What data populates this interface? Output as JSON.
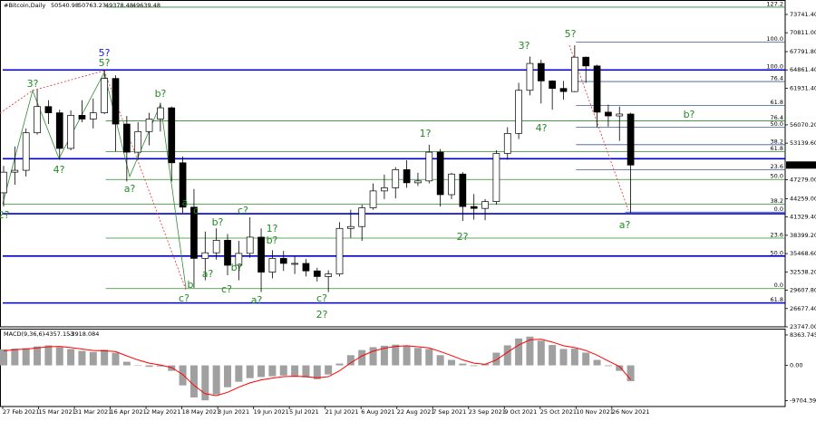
{
  "chart_data": {
    "type": "candlestick",
    "title": "#Bitcoin,Daily",
    "header_values": [
      50540.98,
      50763.23,
      49378.48,
      49639.48
    ],
    "x": [
      "27 Feb 2021",
      "4 Mar 2021",
      "9 Mar 2021",
      "14 Mar 2021",
      "19 Mar 2021",
      "24 Mar 2021",
      "29 Mar 2021",
      "3 Apr 2021",
      "8 Apr 2021",
      "13 Apr 2021",
      "18 Apr 2021",
      "23 Apr 2021",
      "28 Apr 2021",
      "3 May 2021",
      "8 May 2021",
      "13 May 2021",
      "18 May 2021",
      "23 May 2021",
      "28 May 2021",
      "2 Jun 2021",
      "7 Jun 2021",
      "12 Jun 2021",
      "17 Jun 2021",
      "22 Jun 2021",
      "27 Jun 2021",
      "2 Jul 2021",
      "7 Jul 2021",
      "12 Jul 2021",
      "17 Jul 2021",
      "22 Jul 2021",
      "27 Jul 2021",
      "1 Aug 2021",
      "6 Aug 2021",
      "11 Aug 2021",
      "16 Aug 2021",
      "21 Aug 2021",
      "26 Aug 2021",
      "31 Aug 2021",
      "5 Sep 2021",
      "10 Sep 2021",
      "15 Sep 2021",
      "20 Sep 2021",
      "25 Sep 2021",
      "30 Sep 2021",
      "5 Oct 2021",
      "10 Oct 2021",
      "15 Oct 2021",
      "20 Oct 2021",
      "25 Oct 2021",
      "30 Oct 2021",
      "4 Nov 2021",
      "9 Nov 2021",
      "14 Nov 2021",
      "19 Nov 2021",
      "24 Nov 2021",
      "29 Nov 2021",
      "4 Dec 2021"
    ],
    "open": [
      45200,
      48500,
      48800,
      54800,
      59000,
      58000,
      52300,
      57600,
      57000,
      58000,
      63500,
      56200,
      51700,
      55000,
      57000,
      58800,
      50000,
      42900,
      34700,
      35600,
      37600,
      33600,
      35500,
      38100,
      32500,
      34700,
      33900,
      33900,
      32700,
      31800,
      32200,
      39500,
      39800,
      42800,
      45500,
      46000,
      48900,
      46800,
      47100,
      51700,
      44900,
      48200,
      43000,
      42700,
      43800,
      51500,
      54700,
      61600,
      65900,
      63100,
      61900,
      61400,
      66900,
      65500,
      58100,
      57500,
      57800
    ],
    "high": [
      49500,
      52600,
      55500,
      61700,
      60000,
      58500,
      58400,
      60000,
      60300,
      64900,
      64000,
      57500,
      56500,
      58000,
      59600,
      59000,
      51000,
      45800,
      39000,
      39500,
      38600,
      37500,
      41300,
      39500,
      36000,
      35900,
      35000,
      34600,
      33200,
      32800,
      40500,
      42500,
      43300,
      46700,
      48100,
      49300,
      50400,
      48400,
      52900,
      52200,
      48400,
      48500,
      45000,
      44200,
      52000,
      55700,
      62800,
      67000,
      66500,
      63200,
      63100,
      68800,
      67000,
      65700,
      59300,
      59000,
      58000
    ],
    "low": [
      43000,
      46500,
      47800,
      54500,
      56200,
      50500,
      52000,
      56500,
      55500,
      57800,
      51800,
      47000,
      50500,
      52800,
      55000,
      47000,
      42000,
      30000,
      31200,
      34500,
      32000,
      31200,
      34800,
      29300,
      31500,
      32700,
      32200,
      31800,
      31000,
      29300,
      31800,
      38000,
      37500,
      42500,
      44200,
      44300,
      46000,
      46300,
      46700,
      43000,
      44200,
      40700,
      40900,
      40800,
      43300,
      50500,
      53800,
      60800,
      59500,
      58500,
      60100,
      61300,
      62800,
      55700,
      55800,
      53500,
      42000
    ],
    "close": [
      48500,
      48800,
      54800,
      59000,
      58000,
      52300,
      57600,
      57000,
      58000,
      63500,
      56200,
      51700,
      55000,
      57000,
      58800,
      50000,
      42900,
      34700,
      35600,
      37600,
      33600,
      35500,
      38100,
      32500,
      34700,
      33900,
      33900,
      32700,
      31800,
      32200,
      39500,
      39800,
      42800,
      45500,
      46000,
      48900,
      46800,
      47100,
      51700,
      44900,
      48200,
      43000,
      42700,
      43800,
      51500,
      54700,
      61600,
      65900,
      63100,
      61900,
      61400,
      66900,
      65500,
      58100,
      57500,
      57800,
      49639.48
    ],
    "ylim": [
      23747,
      75473
    ],
    "yticks": [
      {
        "value": 73741.4,
        "label": "73741.40"
      },
      {
        "value": 70811,
        "label": "70811.00"
      },
      {
        "value": 67791.8,
        "label": "67791.80"
      },
      {
        "value": 64861.4,
        "label": "64861.40"
      },
      {
        "value": 61931.4,
        "label": "61931.40"
      },
      {
        "value": 56070.2,
        "label": "56070.20"
      },
      {
        "value": 53139.6,
        "label": "53139.60"
      },
      {
        "value": 47279,
        "label": "47279.00"
      },
      {
        "value": 44259,
        "label": "44259.00"
      },
      {
        "value": 41329.4,
        "label": "41329.40"
      },
      {
        "value": 38399.2,
        "label": "38399.20"
      },
      {
        "value": 35468.6,
        "label": "35468.60"
      },
      {
        "value": 32538.2,
        "label": "32538.20"
      },
      {
        "value": 29607.8,
        "label": "29607.80"
      },
      {
        "value": 26677.4,
        "label": "26677.40"
      },
      {
        "value": 23747,
        "label": "23747.00"
      }
    ],
    "xticks": [
      "27 Feb 2021",
      "15 Mar 2021",
      "31 Mar 2021",
      "16 Apr 2021",
      "2 May 2021",
      "18 May 2021",
      "3 Jun 2021",
      "19 Jun 2021",
      "5 Jul 2021",
      "21 Jul 2021",
      "6 Aug 2021",
      "22 Aug 2021",
      "7 Sep 2021",
      "23 Sep 2021",
      "9 Oct 2021",
      "25 Oct 2021",
      "10 Nov 2021",
      "26 Nov 2021"
    ],
    "levels": [
      {
        "label": "127.2",
        "value": 74900,
        "start": "14 Apr 2021",
        "color": "#2e8b2e"
      },
      {
        "label": "100.0",
        "value": 69300,
        "start": "10 Nov 2021",
        "color": "#3b5998"
      },
      {
        "label": "100.0",
        "value": 64861.4,
        "start": "27 Feb 2021",
        "color": "#0000cd",
        "width": 1.6
      },
      {
        "label": "76.4",
        "value": 63000,
        "start": "10 Nov 2021",
        "color": "#3b5998"
      },
      {
        "label": "61.8",
        "value": 59170,
        "start": "10 Nov 2021",
        "color": "#3b5998"
      },
      {
        "label": "76.4",
        "value": 56700,
        "start": "14 Apr 2021",
        "color": "#2e8b2e"
      },
      {
        "label": "50.0",
        "value": 55700,
        "start": "10 Nov 2021",
        "color": "#3b5998"
      },
      {
        "label": "38.2",
        "value": 52900,
        "start": "10 Nov 2021",
        "color": "#3b5998"
      },
      {
        "label": "61.8",
        "value": 51800,
        "start": "14 Apr 2021",
        "color": "#2e8b2e"
      },
      {
        "value": 50650,
        "start": "27 Feb 2021",
        "color": "#0000cd",
        "width": 1.6
      },
      {
        "label": "23.6",
        "value": 48900,
        "start": "10 Nov 2021",
        "color": "#3b5998"
      },
      {
        "label": "50.0",
        "value": 47330,
        "start": "14 Apr 2021",
        "color": "#2e8b2e"
      },
      {
        "label": "38.2",
        "value": 43400,
        "start": "27 Feb 2021",
        "color": "#2e8b2e"
      },
      {
        "label": "0.0",
        "value": 42100,
        "start": "2 Dec 2021",
        "color": "#3b5998"
      },
      {
        "value": 41850,
        "start": "27 Feb 2021",
        "color": "#0000cd",
        "width": 1.6
      },
      {
        "label": "23.6",
        "value": 37950,
        "start": "14 Apr 2021",
        "color": "#2e8b2e"
      },
      {
        "label": "50.0",
        "value": 35070,
        "start": "27 Feb 2021",
        "color": "#0000cd",
        "width": 1.6
      },
      {
        "label": "0.0",
        "value": 29870,
        "start": "14 Apr 2021",
        "color": "#2e8b2e"
      },
      {
        "label": "61.8",
        "value": 27570,
        "start": "27 Feb 2021",
        "color": "#0000cd",
        "width": 1.6
      }
    ],
    "wave_labels": [
      "3?",
      "4?",
      "5?",
      "5?",
      "a?",
      "b?",
      "a",
      "c",
      "b?",
      "c?",
      "a?",
      "b?",
      "b",
      "c?",
      "c?",
      "1?",
      "b?",
      "a?",
      "c?",
      "2?",
      "1?",
      "2?",
      "3?",
      "4?",
      "5?",
      "b?",
      "a?",
      "2?"
    ],
    "macd": {
      "title": "MACD(9,36,6)",
      "histogram": [
        4400,
        4600,
        4700,
        5200,
        5500,
        5000,
        4500,
        4000,
        3700,
        4300,
        3500,
        1000,
        0,
        -400,
        -300,
        -1500,
        -5500,
        -8800,
        -9600,
        -8000,
        -6000,
        -4500,
        -3500,
        -3200,
        -3000,
        -2800,
        -3000,
        -3300,
        -3800,
        -2500,
        500,
        2800,
        4200,
        5000,
        5400,
        5700,
        5400,
        4800,
        4500,
        2800,
        1500,
        500,
        -200,
        400,
        3500,
        5500,
        7400,
        7900,
        6800,
        5600,
        4500,
        4600,
        3500,
        1500,
        -200,
        -1500,
        -4357.153
      ],
      "signal": [
        4000,
        4300,
        4500,
        4800,
        5100,
        5200,
        4900,
        4500,
        4100,
        4000,
        3800,
        2600,
        1500,
        600,
        100,
        -600,
        -2500,
        -5500,
        -7800,
        -8300,
        -7400,
        -6000,
        -4800,
        -4000,
        -3500,
        -3100,
        -3000,
        -3100,
        -3400,
        -3100,
        -1500,
        700,
        2600,
        3900,
        4700,
        5200,
        5400,
        5100,
        4800,
        3800,
        2700,
        1500,
        600,
        300,
        1500,
        3600,
        5600,
        7000,
        7200,
        6400,
        5400,
        4900,
        4100,
        2800,
        1200,
        -300,
        -3918.084
      ],
      "histogram_color": "#a0a0a0",
      "signal_color": "#ff0000",
      "ylim": [
        -11300,
        9840
      ],
      "yticks": [
        8363.745,
        {
          "value": 0,
          "label": "0.00"
        },
        -9704.398
      ]
    }
  }
}
